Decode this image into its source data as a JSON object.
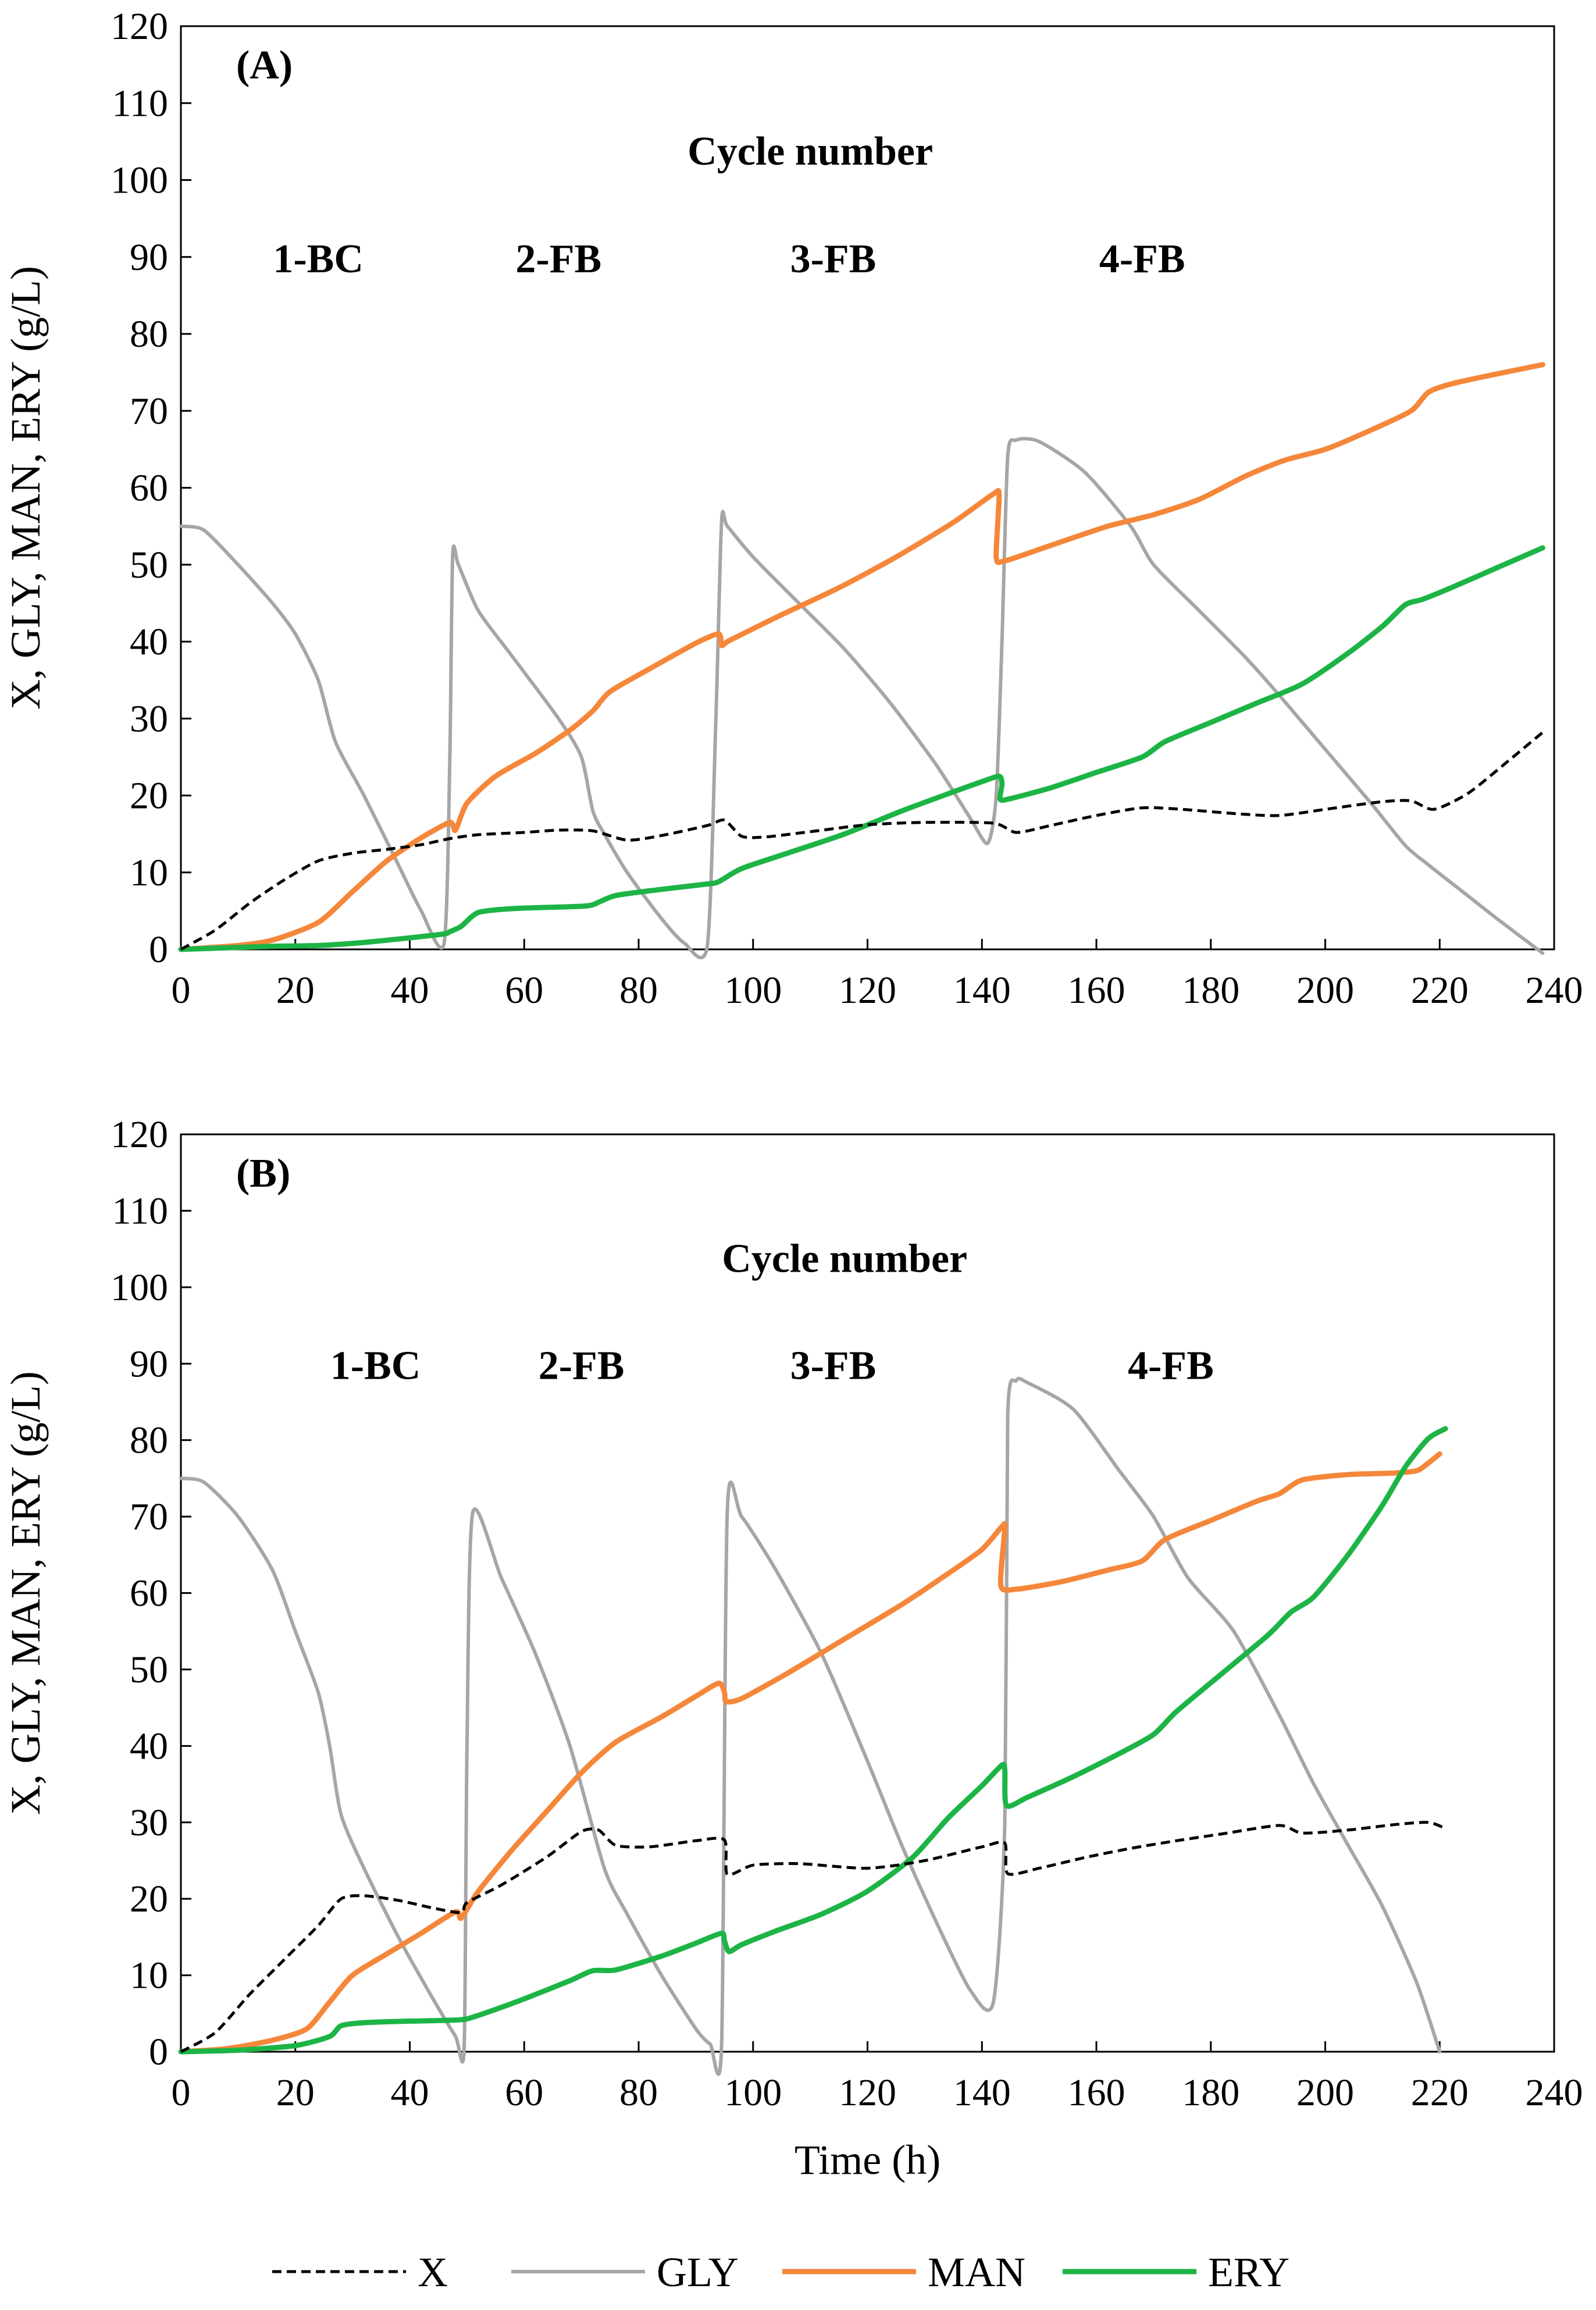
{
  "chart_data": [
    {
      "type": "line",
      "panel_label": "(A)",
      "xlabel": "",
      "ylabel": "X, GLY, MAN, ERY (g/L)",
      "xlim": [
        0,
        240
      ],
      "ylim": [
        0,
        120
      ],
      "xticks": [
        0,
        20,
        40,
        60,
        80,
        100,
        120,
        140,
        160,
        180,
        200,
        220,
        240
      ],
      "yticks": [
        0,
        10,
        20,
        30,
        40,
        50,
        60,
        70,
        80,
        90,
        100,
        110,
        120
      ],
      "grid": false,
      "annotations": {
        "title": "Cycle number",
        "cycles": [
          {
            "label": "1-BC",
            "x": 24,
            "y": 88
          },
          {
            "label": "2-FB",
            "x": 66,
            "y": 88
          },
          {
            "label": "3-FB",
            "x": 114,
            "y": 88
          },
          {
            "label": "4-FB",
            "x": 168,
            "y": 88
          }
        ],
        "title_pos": {
          "x": 110,
          "y": 102
        }
      },
      "series": [
        {
          "name": "X",
          "color": "#000000",
          "style": "dashed",
          "x": [
            0,
            6,
            12,
            18,
            24,
            30,
            36,
            42,
            47,
            52,
            60,
            66,
            72,
            78,
            84,
            92,
            95,
            98,
            102,
            110,
            120,
            130,
            142,
            146,
            152,
            160,
            168,
            175,
            185,
            192,
            200,
            210,
            215,
            219,
            225,
            232,
            238
          ],
          "y": [
            0,
            2.5,
            6,
            9,
            11.5,
            12.5,
            13,
            13.6,
            14.4,
            14.9,
            15.2,
            15.5,
            15.4,
            14.2,
            14.8,
            16.1,
            16.8,
            14.7,
            14.6,
            15.3,
            16.2,
            16.5,
            16.4,
            15.2,
            16.1,
            17.4,
            18.4,
            18.2,
            17.6,
            17.4,
            18.2,
            19.2,
            19.3,
            18.2,
            20.3,
            24.5,
            28.2
          ]
        },
        {
          "name": "GLY",
          "color": "#a6a6a6",
          "style": "solid",
          "x": [
            0,
            4,
            10,
            16,
            20,
            24,
            27,
            32,
            38,
            42,
            46,
            47,
            47.5,
            48.5,
            52,
            58,
            66,
            70,
            72,
            74,
            78,
            84,
            88,
            92,
            93.5,
            94.5,
            95.5,
            100,
            108,
            116,
            124,
            132,
            138,
            141,
            142.5,
            143.5,
            144.5,
            146,
            150,
            158,
            166,
            170,
            178,
            186,
            192,
            200,
            208,
            214,
            218,
            224,
            230,
            238
          ],
          "y": [
            55,
            54.5,
            50,
            45,
            41,
            35,
            27,
            20,
            11,
            5,
            0.8,
            25,
            51.2,
            50,
            44,
            38,
            30,
            25,
            18,
            15,
            10,
            4,
            0.8,
            0.5,
            30,
            55.6,
            55,
            51,
            45,
            39,
            32,
            24,
            17,
            13.8,
            20,
            40,
            64,
            66.2,
            66,
            62,
            55,
            50,
            44,
            38,
            33,
            26,
            19,
            13.5,
            11,
            7.5,
            4,
            -0.5
          ]
        },
        {
          "name": "MAN",
          "color": "#f5873a",
          "style": "solid",
          "x": [
            0,
            10,
            16,
            24,
            30,
            36,
            42,
            47,
            48,
            50,
            55,
            62,
            68,
            72,
            75,
            82,
            90,
            94,
            94.5,
            96,
            105,
            115,
            125,
            135,
            142,
            143,
            142.5,
            144,
            152,
            162,
            170,
            178,
            186,
            193,
            200,
            208,
            215,
            218,
            222,
            230,
            238
          ],
          "y": [
            0,
            0.5,
            1.2,
            3.5,
            7.5,
            11.5,
            14.5,
            16.5,
            15.5,
            19,
            22.5,
            25.5,
            28.5,
            31,
            33.5,
            36.5,
            39.8,
            41,
            39.5,
            40.2,
            43.5,
            47,
            51,
            55.5,
            59.2,
            59,
            51,
            50.5,
            52.5,
            55,
            56.5,
            58.5,
            61.5,
            63.6,
            65,
            67.5,
            70,
            72.4,
            73.5,
            74.8,
            76
          ]
        },
        {
          "name": "ERY",
          "color": "#1db446",
          "style": "solid",
          "x": [
            0,
            8,
            16,
            24,
            32,
            40,
            46,
            47,
            49,
            52,
            58,
            66,
            70,
            72,
            76,
            84,
            92,
            94,
            98,
            106,
            116,
            126,
            134,
            140,
            143,
            143.5,
            143.2,
            145,
            152,
            160,
            168,
            172,
            180,
            188,
            196,
            204,
            210,
            214,
            217,
            222,
            230,
            238
          ],
          "y": [
            0,
            0.2,
            0.4,
            0.5,
            0.9,
            1.5,
            2.0,
            2.3,
            3.0,
            4.8,
            5.3,
            5.5,
            5.6,
            5.8,
            7.0,
            7.8,
            8.5,
            8.8,
            10.5,
            12.5,
            15,
            18,
            20.2,
            21.8,
            22.5,
            21.5,
            19.5,
            19.6,
            21,
            23,
            25,
            27,
            29.5,
            32,
            34.5,
            38.5,
            42,
            44.8,
            45.5,
            47,
            49.6,
            52.2
          ]
        }
      ]
    },
    {
      "type": "line",
      "panel_label": "(B)",
      "xlabel": "Time (h)",
      "ylabel": "X, GLY, MAN, ERY (g/L)",
      "xlim": [
        0,
        240
      ],
      "ylim": [
        0,
        120
      ],
      "xticks": [
        0,
        20,
        40,
        60,
        80,
        100,
        120,
        140,
        160,
        180,
        200,
        220,
        240
      ],
      "yticks": [
        0,
        10,
        20,
        30,
        40,
        50,
        60,
        70,
        80,
        90,
        100,
        110,
        120
      ],
      "grid": false,
      "annotations": {
        "title": "Cycle number",
        "cycles": [
          {
            "label": "1-BC",
            "x": 34,
            "y": 88
          },
          {
            "label": "2-FB",
            "x": 70,
            "y": 88
          },
          {
            "label": "3-FB",
            "x": 114,
            "y": 88
          },
          {
            "label": "4-FB",
            "x": 173,
            "y": 88
          }
        ],
        "title_pos": {
          "x": 116,
          "y": 102
        }
      },
      "series": [
        {
          "name": "X",
          "color": "#000000",
          "style": "dashed",
          "x": [
            0,
            6,
            12,
            18,
            24,
            28,
            32,
            38,
            44,
            49,
            50,
            56,
            64,
            70,
            73,
            76,
            82,
            90,
            95,
            95.5,
            100,
            108,
            120,
            130,
            140,
            144,
            144.5,
            150,
            158,
            166,
            174,
            182,
            192,
            196,
            204,
            212,
            218,
            221
          ],
          "y": [
            0,
            2.5,
            7.5,
            12,
            16.5,
            20,
            20.4,
            19.8,
            18.8,
            18.2,
            19.5,
            21.8,
            25.5,
            28.8,
            29,
            27,
            26.8,
            27.6,
            27.7,
            23.2,
            24.4,
            24.6,
            24,
            25,
            26.8,
            27.3,
            23.3,
            24,
            25.4,
            26.6,
            27.6,
            28.5,
            29.6,
            28.6,
            29,
            29.7,
            30,
            29.2
          ]
        },
        {
          "name": "GLY",
          "color": "#a6a6a6",
          "style": "solid",
          "x": [
            0,
            4,
            10,
            16,
            20,
            24,
            26,
            28,
            32,
            38,
            44,
            48,
            49.5,
            50,
            51,
            56,
            62,
            68,
            74,
            78,
            84,
            90,
            92.5,
            94.5,
            95.5,
            98,
            104,
            112,
            120,
            126,
            132,
            138,
            142,
            144,
            144.5,
            146,
            148,
            156,
            164,
            170,
            176,
            184,
            192,
            198,
            204,
            210,
            216,
            220
          ],
          "y": [
            75,
            74.5,
            70,
            63,
            55,
            47,
            40,
            31,
            24,
            15,
            7,
            2,
            0.5,
            40,
            70.5,
            62,
            52,
            40,
            24,
            18,
            10,
            3,
            1,
            0.8,
            70.8,
            70,
            63,
            52,
            38,
            27,
            17,
            8,
            6.5,
            30,
            83,
            87.8,
            87.5,
            84,
            76,
            70,
            62,
            55,
            44,
            35,
            27,
            19,
            9,
            0
          ]
        },
        {
          "name": "MAN",
          "color": "#f5873a",
          "style": "solid",
          "x": [
            0,
            8,
            16,
            22,
            26,
            30,
            36,
            42,
            48,
            49,
            52,
            58,
            64,
            70,
            76,
            84,
            90,
            94,
            95,
            95.3,
            98,
            106,
            116,
            126,
            134,
            140,
            143.5,
            144,
            143.3,
            146,
            154,
            162,
            168,
            172,
            180,
            188,
            192,
            196,
            204,
            212,
            216,
            218,
            220
          ],
          "y": [
            0,
            0.4,
            1.5,
            3,
            6.5,
            10,
            12.8,
            15.5,
            18.3,
            17.5,
            21,
            26.5,
            31.5,
            36.5,
            40.5,
            43.8,
            46.5,
            48.2,
            47,
            45.8,
            46.2,
            49.5,
            54,
            58.5,
            62.5,
            65.7,
            68.7,
            68.5,
            61,
            60.5,
            61.5,
            63,
            64.2,
            67,
            69.5,
            72,
            73,
            74.8,
            75.5,
            75.7,
            76,
            77,
            78.2
          ]
        },
        {
          "name": "ERY",
          "color": "#1db446",
          "style": "solid",
          "x": [
            0,
            10,
            20,
            26,
            28,
            32,
            40,
            46,
            50,
            56,
            62,
            68,
            72,
            76,
            84,
            90,
            94.5,
            95,
            95.8,
            98,
            104,
            112,
            120,
            128,
            134,
            140,
            143.5,
            144,
            144.3,
            148,
            156,
            164,
            170,
            174,
            182,
            190,
            194,
            198,
            204,
            210,
            214,
            218,
            221
          ],
          "y": [
            0,
            0.2,
            0.8,
            2,
            3.4,
            3.8,
            4,
            4.1,
            4.3,
            5.8,
            7.5,
            9.3,
            10.6,
            10.7,
            12.5,
            14.2,
            15.5,
            14.5,
            13.1,
            14,
            15.8,
            18,
            21,
            25.5,
            30.5,
            34.8,
            37.5,
            36.8,
            32.2,
            33.3,
            36,
            39,
            41.5,
            44.5,
            49.5,
            54.5,
            57.5,
            59.5,
            65,
            71.5,
            76.5,
            80.2,
            81.5
          ]
        }
      ]
    }
  ],
  "legend": {
    "placement": "bottom",
    "items": [
      {
        "label": "X",
        "color": "#000000",
        "style": "dashed"
      },
      {
        "label": "GLY",
        "color": "#a6a6a6",
        "style": "solid"
      },
      {
        "label": "MAN",
        "color": "#f5873a",
        "style": "solid"
      },
      {
        "label": "ERY",
        "color": "#1db446",
        "style": "solid"
      }
    ]
  }
}
